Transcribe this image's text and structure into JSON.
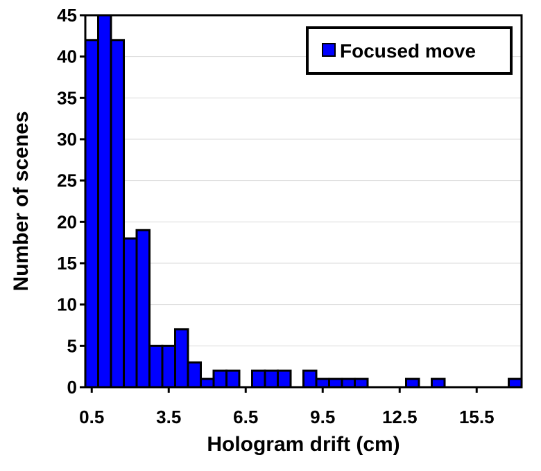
{
  "chart_data": {
    "type": "bar",
    "xlabel": "Hologram drift (cm)",
    "ylabel": "Number of scenes",
    "ylim": [
      0,
      45
    ],
    "yticks": [
      0,
      5,
      10,
      15,
      20,
      25,
      30,
      35,
      40,
      45
    ],
    "xticks": [
      0.5,
      3.5,
      6.5,
      9.5,
      12.5,
      15.5
    ],
    "xtick_labels": [
      "0.5",
      "3.5",
      "6.5",
      "9.5",
      "12.5",
      "15.5"
    ],
    "x_range": [
      0.25,
      17.25
    ],
    "bin_width": 0.5,
    "grid": "horizontal",
    "legend_position": "top-right",
    "colors": {
      "bar_fill": "#0000ff",
      "bar_edge": "#000000",
      "grid": "#d9d9d9"
    },
    "series": [
      {
        "name": "Focused move",
        "x": [
          0.5,
          1.0,
          1.5,
          2.0,
          2.5,
          3.0,
          3.5,
          4.0,
          4.5,
          5.0,
          5.5,
          6.0,
          6.5,
          7.0,
          7.5,
          8.0,
          8.5,
          9.0,
          9.5,
          10.0,
          10.5,
          11.0,
          11.5,
          12.0,
          12.5,
          13.0,
          13.5,
          14.0,
          14.5,
          15.0,
          15.5,
          16.0,
          16.5,
          17.0
        ],
        "values": [
          42,
          45,
          42,
          18,
          19,
          5,
          5,
          7,
          3,
          1,
          2,
          2,
          0,
          2,
          2,
          2,
          0,
          2,
          1,
          1,
          1,
          1,
          0,
          0,
          0,
          1,
          0,
          1,
          0,
          0,
          0,
          0,
          0,
          1
        ]
      }
    ]
  }
}
